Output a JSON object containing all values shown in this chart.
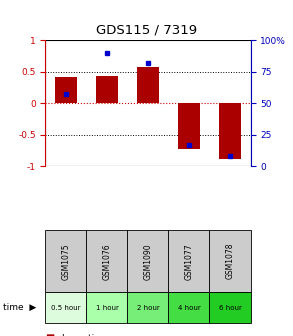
{
  "title": "GDS115 / 7319",
  "samples": [
    "GSM1075",
    "GSM1076",
    "GSM1090",
    "GSM1077",
    "GSM1078"
  ],
  "time_labels": [
    "0.5 hour",
    "1 hour",
    "2 hour",
    "4 hour",
    "6 hour"
  ],
  "time_colors": [
    "#ddfcdd",
    "#aaffaa",
    "#77ee77",
    "#44dd44",
    "#22cc22"
  ],
  "log_ratios": [
    0.42,
    0.43,
    0.57,
    -0.72,
    -0.88
  ],
  "pct_ranks": [
    57,
    90,
    82,
    17,
    8
  ],
  "bar_color": "#aa0000",
  "dot_color": "#0000cc",
  "ylim_left": [
    -1,
    1
  ],
  "ylim_right": [
    0,
    100
  ],
  "yticks_left": [
    -1,
    -0.5,
    0,
    0.5,
    1
  ],
  "ytick_labels_left": [
    "-1",
    "-0.5",
    "0",
    "0.5",
    "1"
  ],
  "yticks_right": [
    0,
    25,
    50,
    75,
    100
  ],
  "ytick_labels_right": [
    "0",
    "25",
    "50",
    "75",
    "100%"
  ],
  "right_axis_color": "#0000bb",
  "left_axis_color": "#cc0000",
  "dot_line_color": "#000000",
  "zero_line_color": "#cc0000",
  "background_color": "#ffffff",
  "bar_width": 0.55,
  "sample_box_color": "#cccccc",
  "legend_bar_color": "#aa0000",
  "legend_dot_color": "#0000cc"
}
